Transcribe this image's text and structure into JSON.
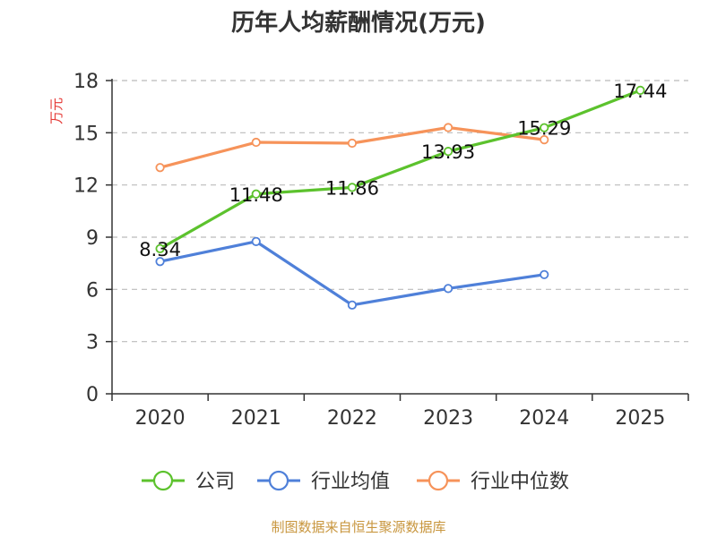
{
  "chart_data": {
    "type": "line",
    "title": "历年人均薪酬情况(万元)",
    "ylabel": "万元",
    "xlabel": "",
    "categories": [
      "2020",
      "2021",
      "2022",
      "2023",
      "2024",
      "2025"
    ],
    "ylim": [
      0,
      18
    ],
    "yticks": [
      0,
      3,
      6,
      9,
      12,
      15,
      18
    ],
    "grid": true,
    "legend_position": "bottom",
    "series": [
      {
        "name": "公司",
        "color": "#5cc22d",
        "values": [
          8.34,
          11.48,
          11.86,
          13.93,
          15.29,
          17.44
        ],
        "show_labels": true
      },
      {
        "name": "行业均值",
        "color": "#4f80d9",
        "values": [
          7.6,
          8.75,
          5.1,
          6.05,
          6.85,
          null
        ],
        "show_labels": false
      },
      {
        "name": "行业中位数",
        "color": "#f6935a",
        "values": [
          13.0,
          14.45,
          14.4,
          15.3,
          14.6,
          null
        ],
        "show_labels": false
      }
    ],
    "data_labels": [
      "8.34",
      "11.48",
      "11.86",
      "13.93",
      "15.29",
      "17.44"
    ]
  },
  "source_text": "制图数据来自恒生聚源数据库"
}
